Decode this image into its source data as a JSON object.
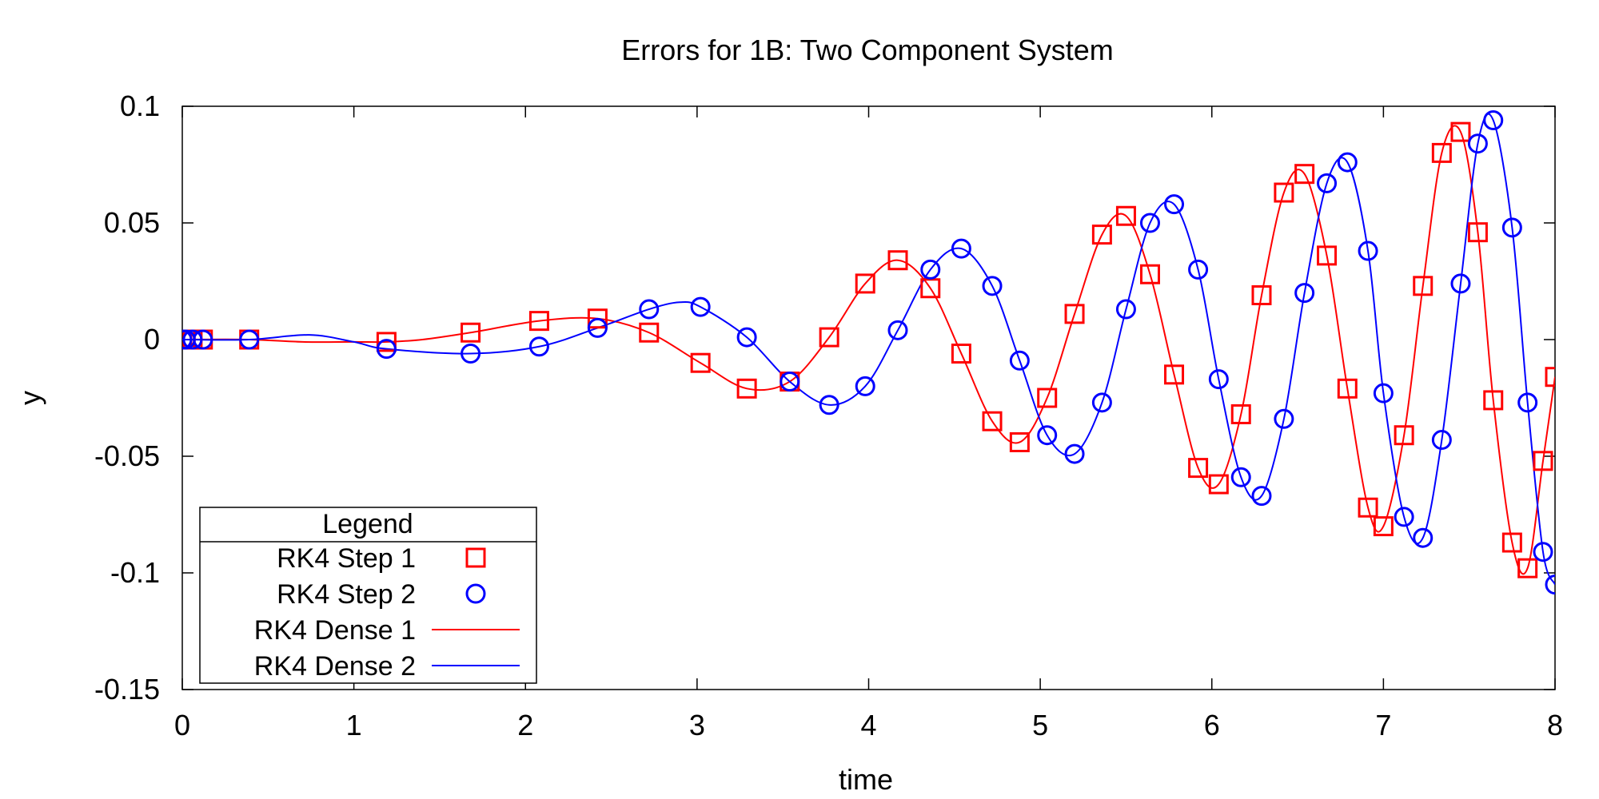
{
  "chart_data": {
    "type": "scatter",
    "title": "Errors for 1B: Two Component System",
    "xlabel": "time",
    "ylabel": "y",
    "xlim": [
      0,
      8
    ],
    "ylim": [
      -0.15,
      0.1
    ],
    "xticks": [
      "0",
      "1",
      "2",
      "3",
      "4",
      "5",
      "6",
      "7",
      "8"
    ],
    "yticks": [
      "0.1",
      "0.05",
      "0",
      "-0.05",
      "-0.1",
      "-0.15"
    ],
    "grid": false,
    "legend": {
      "title": "Legend",
      "position": "bottom-left",
      "entries": [
        "RK4 Step 1",
        "RK4 Step 2",
        "RK4 Dense 1",
        "RK4 Dense 2"
      ]
    },
    "series": [
      {
        "name": "RK4 Step 1",
        "kind": "markers",
        "marker": "square",
        "color": "#ff0000",
        "x": [
          0,
          0.02,
          0.06,
          0.12,
          0.39,
          1.19,
          1.68,
          2.08,
          2.42,
          2.72,
          3.02,
          3.29,
          3.54,
          3.77,
          3.98,
          4.17,
          4.36,
          4.54,
          4.72,
          4.88,
          5.04,
          5.2,
          5.36,
          5.5,
          5.64,
          5.78,
          5.92,
          6.04,
          6.17,
          6.29,
          6.42,
          6.54,
          6.67,
          6.79,
          6.91,
          7.0,
          7.12,
          7.23,
          7.34,
          7.45,
          7.55,
          7.64,
          7.75,
          7.84,
          7.93,
          8.0
        ],
        "y": [
          0,
          0,
          0,
          0,
          0,
          -0.001,
          0.003,
          0.008,
          0.009,
          0.003,
          -0.01,
          -0.021,
          -0.018,
          0.001,
          0.024,
          0.034,
          0.022,
          -0.006,
          -0.035,
          -0.044,
          -0.025,
          0.011,
          0.045,
          0.053,
          0.028,
          -0.015,
          -0.055,
          -0.062,
          -0.032,
          0.019,
          0.063,
          0.071,
          0.036,
          -0.021,
          -0.072,
          -0.08,
          -0.041,
          0.023,
          0.08,
          0.089,
          0.046,
          -0.026,
          -0.087,
          -0.098,
          -0.052,
          -0.016
        ]
      },
      {
        "name": "RK4 Step 2",
        "kind": "markers",
        "marker": "circle",
        "color": "#0000ff",
        "x": [
          0,
          0.02,
          0.06,
          0.12,
          0.39,
          1.19,
          1.68,
          2.08,
          2.42,
          2.72,
          3.02,
          3.29,
          3.54,
          3.77,
          3.98,
          4.17,
          4.36,
          4.54,
          4.72,
          4.88,
          5.04,
          5.2,
          5.36,
          5.5,
          5.64,
          5.78,
          5.92,
          6.04,
          6.17,
          6.29,
          6.42,
          6.54,
          6.67,
          6.79,
          6.91,
          7.0,
          7.12,
          7.23,
          7.34,
          7.45,
          7.55,
          7.64,
          7.75,
          7.84,
          7.93,
          8.0
        ],
        "y": [
          0,
          0,
          0,
          0,
          0,
          -0.004,
          -0.006,
          -0.003,
          0.005,
          0.013,
          0.014,
          0.001,
          -0.018,
          -0.028,
          -0.02,
          0.004,
          0.03,
          0.039,
          0.023,
          -0.009,
          -0.041,
          -0.049,
          -0.027,
          0.013,
          0.05,
          0.058,
          0.03,
          -0.017,
          -0.059,
          -0.067,
          -0.034,
          0.02,
          0.067,
          0.076,
          0.038,
          -0.023,
          -0.076,
          -0.085,
          -0.043,
          0.024,
          0.084,
          0.094,
          0.048,
          -0.027,
          -0.091,
          -0.105
        ]
      },
      {
        "name": "RK4 Dense 1",
        "kind": "line",
        "color": "#ff0000",
        "x": [
          0,
          0.39,
          0.7,
          1.0,
          1.19,
          1.4,
          1.68,
          2.08,
          2.42,
          2.72,
          3.02,
          3.29,
          3.54,
          3.77,
          3.98,
          4.17,
          4.36,
          4.54,
          4.72,
          4.88,
          5.04,
          5.2,
          5.36,
          5.5,
          5.64,
          5.78,
          5.92,
          6.04,
          6.17,
          6.29,
          6.42,
          6.54,
          6.67,
          6.79,
          6.91,
          7.0,
          7.12,
          7.23,
          7.34,
          7.45,
          7.55,
          7.64,
          7.75,
          7.84,
          7.93,
          8.0
        ],
        "y": [
          0,
          0,
          -0.001,
          -0.001,
          -0.001,
          0.0,
          0.003,
          0.008,
          0.009,
          0.003,
          -0.01,
          -0.021,
          -0.018,
          0.001,
          0.024,
          0.034,
          0.022,
          -0.006,
          -0.035,
          -0.044,
          -0.025,
          0.011,
          0.045,
          0.053,
          0.028,
          -0.015,
          -0.055,
          -0.062,
          -0.032,
          0.019,
          0.063,
          0.071,
          0.036,
          -0.021,
          -0.072,
          -0.08,
          -0.041,
          0.023,
          0.08,
          0.089,
          0.046,
          -0.026,
          -0.087,
          -0.098,
          -0.052,
          -0.016
        ]
      },
      {
        "name": "RK4 Dense 2",
        "kind": "line",
        "color": "#0000ff",
        "x": [
          0,
          0.39,
          0.74,
          1.0,
          1.19,
          1.68,
          2.08,
          2.42,
          2.72,
          2.9,
          3.02,
          3.29,
          3.54,
          3.77,
          3.98,
          4.17,
          4.36,
          4.54,
          4.72,
          4.88,
          5.04,
          5.2,
          5.36,
          5.5,
          5.64,
          5.78,
          5.92,
          6.04,
          6.17,
          6.29,
          6.42,
          6.54,
          6.67,
          6.79,
          6.91,
          7.0,
          7.12,
          7.23,
          7.34,
          7.45,
          7.55,
          7.64,
          7.75,
          7.84,
          7.93,
          8.0
        ],
        "y": [
          0,
          0,
          0.002,
          -0.001,
          -0.004,
          -0.006,
          -0.003,
          0.005,
          0.013,
          0.016,
          0.014,
          0.001,
          -0.018,
          -0.028,
          -0.02,
          0.004,
          0.03,
          0.039,
          0.023,
          -0.009,
          -0.041,
          -0.049,
          -0.027,
          0.013,
          0.05,
          0.058,
          0.03,
          -0.017,
          -0.059,
          -0.067,
          -0.034,
          0.02,
          0.067,
          0.076,
          0.038,
          -0.023,
          -0.076,
          -0.085,
          -0.043,
          0.024,
          0.084,
          0.094,
          0.048,
          -0.027,
          -0.091,
          -0.105
        ]
      }
    ]
  }
}
